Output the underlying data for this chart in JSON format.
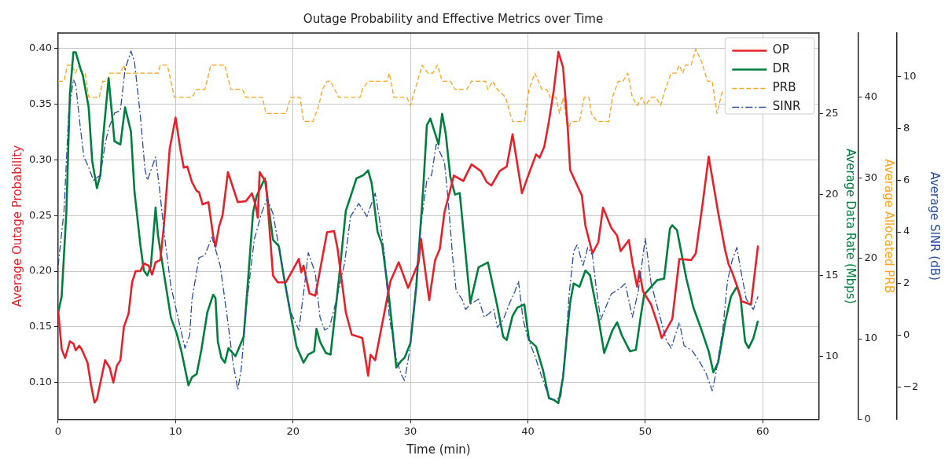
{
  "chart_data": [
    {
      "type": "line",
      "title": "Outage Probability and Effective Metrics over Time",
      "xlabel": "Time (min)",
      "ylabel": "Average Outage Probability",
      "y2label": "Average Data Rate (Mbps)",
      "y3label": "Average Allocated PRB",
      "xlim": [
        0,
        64.8
      ],
      "xticks": [
        0,
        10,
        20,
        30,
        40,
        50,
        60
      ],
      "ylim": [
        0.067,
        0.414
      ],
      "yticks": [
        {
          "value": 0.1,
          "label": "0.10"
        },
        {
          "value": 0.15,
          "label": "0.15"
        },
        {
          "value": 0.2,
          "label": "0.20"
        },
        {
          "value": 0.25,
          "label": "0.25"
        },
        {
          "value": 0.3,
          "label": "0.30"
        },
        {
          "value": 0.35,
          "label": "0.35"
        },
        {
          "value": 0.4,
          "label": "0.40"
        }
      ],
      "y2lim": [
        6.1,
        30
      ],
      "y2ticks": [
        10,
        15,
        20,
        25
      ],
      "y3lim": [
        0,
        48
      ],
      "y3ticks": [
        0,
        10,
        20,
        30,
        40
      ],
      "grid": true,
      "legend": "top right",
      "series": [
        {
          "name": "OP",
          "color": "#e8202a",
          "line_style": "solid",
          "x": [
            0,
            0.3,
            0.6,
            1.0,
            1.3,
            1.5,
            1.8,
            2.0,
            2.5,
            2.8,
            3.1,
            3.3,
            3.6,
            4.0,
            4.4,
            4.7,
            5.0,
            5.3,
            5.6,
            6.0,
            6.3,
            6.6,
            7.0,
            7.3,
            7.7,
            8.0,
            8.3,
            8.7,
            9.0,
            9.5,
            10.0,
            10.4,
            10.7,
            11.0,
            11.4,
            11.8,
            12.0,
            12.3,
            12.8,
            13.2,
            13.4,
            13.7,
            14.0,
            14.46,
            15.3,
            16.0,
            16.5,
            16.8,
            17.0,
            17.16,
            17.7,
            18.3,
            18.7,
            19.4,
            20.5,
            20.7,
            20.9,
            21.4,
            21.9,
            22.9,
            23.5,
            23.8,
            24.5,
            25.0,
            25.9,
            26.4,
            26.6,
            27.0,
            28.3,
            29.0,
            29.8,
            30.7,
            30.9,
            31.6,
            32.1,
            32.5,
            32.9,
            33.7,
            34.5,
            35.2,
            36.0,
            36.5,
            36.9,
            37.6,
            38.2,
            38.7,
            39.5,
            40.0,
            40.7,
            41.0,
            41.4,
            41.8,
            42.2,
            42.6,
            43.0,
            43.4,
            43.6,
            44.2,
            44.6,
            44.9,
            45.5,
            46.0,
            46.4,
            47.1,
            47.6,
            47.9,
            48.6,
            48.9,
            49.3,
            49.5,
            49.8,
            50.5,
            51.1,
            51.4,
            52.3,
            52.9,
            53.9,
            54.3,
            54.9,
            55.4,
            56.2,
            56.8,
            57.1,
            57.4,
            57.9,
            58.2,
            59.0,
            59.6
          ],
          "values": [
            0.165,
            0.13,
            0.122,
            0.137,
            0.135,
            0.129,
            0.133,
            0.13,
            0.118,
            0.098,
            0.082,
            0.085,
            0.1,
            0.12,
            0.113,
            0.1,
            0.115,
            0.12,
            0.15,
            0.162,
            0.19,
            0.2,
            0.2,
            0.207,
            0.205,
            0.197,
            0.208,
            0.21,
            0.24,
            0.31,
            0.338,
            0.31,
            0.293,
            0.294,
            0.28,
            0.272,
            0.271,
            0.26,
            0.262,
            0.232,
            0.222,
            0.24,
            0.25,
            0.289,
            0.262,
            0.263,
            0.27,
            0.26,
            0.248,
            0.289,
            0.28,
            0.196,
            0.19,
            0.19,
            0.211,
            0.199,
            0.205,
            0.18,
            0.178,
            0.235,
            0.236,
            0.22,
            0.163,
            0.143,
            0.14,
            0.106,
            0.125,
            0.12,
            0.191,
            0.208,
            0.185,
            0.208,
            0.229,
            0.174,
            0.21,
            0.22,
            0.253,
            0.286,
            0.281,
            0.296,
            0.29,
            0.28,
            0.277,
            0.29,
            0.294,
            0.323,
            0.27,
            0.285,
            0.305,
            0.302,
            0.312,
            0.335,
            0.362,
            0.397,
            0.383,
            0.328,
            0.291,
            0.277,
            0.268,
            0.241,
            0.216,
            0.226,
            0.257,
            0.239,
            0.232,
            0.218,
            0.228,
            0.208,
            0.186,
            0.2,
            0.182,
            0.17,
            0.151,
            0.14,
            0.157,
            0.211,
            0.21,
            0.216,
            0.262,
            0.303,
            0.253,
            0.219,
            0.206,
            0.199,
            0.184,
            0.173,
            0.17,
            0.223
          ]
        },
        {
          "name": "DR",
          "color": "#007f3f",
          "line_style": "solid",
          "axis": "y2",
          "x": [
            0,
            0.3,
            0.7,
            1.0,
            1.3,
            1.5,
            1.9,
            2.1,
            2.6,
            2.9,
            3.3,
            3.6,
            3.8,
            4.3,
            4.8,
            5.3,
            5.7,
            6.2,
            6.5,
            7.0,
            7.3,
            7.6,
            7.9,
            8.3,
            8.5,
            9.1,
            9.6,
            10.1,
            10.5,
            11.1,
            11.4,
            11.8,
            12.2,
            12.7,
            13.2,
            13.4,
            13.6,
            13.9,
            14.2,
            14.5,
            15.1,
            15.8,
            16.1,
            16.6,
            16.9,
            17.6,
            18.3,
            18.8,
            19.2,
            19.8,
            20.3,
            20.9,
            21.3,
            21.8,
            22.0,
            22.3,
            22.8,
            23.2,
            23.9,
            24.5,
            25.0,
            25.4,
            26.0,
            26.4,
            26.7,
            27.2,
            27.6,
            28.2,
            28.8,
            29.2,
            29.5,
            30.0,
            30.5,
            31.1,
            31.4,
            31.7,
            32.4,
            32.7,
            33.0,
            33.4,
            33.8,
            34.2,
            35.1,
            35.8,
            36.6,
            37.4,
            37.9,
            38.2,
            38.7,
            39.1,
            39.7,
            40.1,
            40.7,
            41.3,
            41.8,
            42.2,
            42.6,
            43.0,
            43.3,
            43.6,
            43.9,
            44.4,
            44.9,
            45.3,
            46.0,
            46.5,
            47.2,
            47.6,
            48.0,
            48.7,
            49.2,
            49.6,
            49.9,
            50.5,
            51.0,
            51.6,
            52.1,
            52.3,
            52.7,
            53.5,
            54.1,
            54.8,
            55.4,
            55.8,
            56.2,
            56.8,
            57.3,
            57.8,
            58.1,
            58.5,
            58.8,
            59.2,
            59.6
          ],
          "values": [
            12.7,
            13.7,
            18.9,
            26.2,
            28.8,
            28.8,
            27.8,
            27.4,
            25.4,
            22.1,
            20.4,
            21.2,
            23.3,
            27.2,
            23.3,
            23.1,
            25.4,
            23.9,
            20.2,
            16.9,
            15.3,
            15.0,
            15.6,
            19.2,
            17.5,
            14.7,
            12.4,
            11.4,
            10.3,
            8.2,
            8.7,
            8.9,
            10.4,
            12.7,
            13.8,
            13.6,
            10.9,
            9.9,
            9.6,
            10.5,
            10.0,
            11.2,
            14.0,
            18.9,
            19.9,
            21.0,
            17.2,
            16.8,
            15.0,
            12.6,
            10.6,
            9.6,
            10.1,
            10.3,
            11.7,
            10.9,
            10.2,
            10.1,
            14.7,
            19.0,
            20.1,
            21.0,
            21.2,
            21.5,
            20.7,
            17.7,
            16.9,
            13.5,
            9.3,
            9.7,
            9.9,
            10.8,
            14.3,
            20.5,
            24.3,
            24.7,
            23.1,
            25.0,
            23.8,
            21.1,
            20.0,
            20.1,
            13.3,
            15.5,
            15.8,
            13.1,
            11.2,
            11.0,
            12.5,
            13.0,
            13.2,
            11.0,
            10.6,
            9.1,
            7.4,
            7.3,
            7.1,
            8.7,
            11.1,
            13.3,
            14.5,
            14.3,
            15.3,
            15.0,
            12.4,
            10.2,
            11.6,
            12.1,
            11.3,
            10.3,
            10.4,
            12.4,
            13.8,
            14.3,
            14.7,
            14.8,
            17.9,
            18.1,
            17.8,
            14.8,
            13.0,
            11.6,
            10.3,
            9.0,
            9.6,
            12.1,
            13.7,
            14.3,
            13.7,
            10.9,
            10.5,
            11.1,
            12.2
          ]
        },
        {
          "name": "PRB",
          "color": "#ffa31a",
          "line_style": "dashed",
          "axis": "y3",
          "x": [
            0,
            0.5,
            0.8,
            1.2,
            1.45,
            1.8,
            2.0,
            2.3,
            2.6,
            3.5,
            3.8,
            4.2,
            4.4,
            5.3,
            5.6,
            5.8,
            8.5,
            8.7,
            9.3,
            9.9,
            11.4,
            11.8,
            12.5,
            13.0,
            14.2,
            14.7,
            15.7,
            16.0,
            17.4,
            17.7,
            19.4,
            19.8,
            20.6,
            20.9,
            21.7,
            22.2,
            22.5,
            22.9,
            23.2,
            23.9,
            25.7,
            25.9,
            26.4,
            28.0,
            28.2,
            28.6,
            29.7,
            30.0,
            30.5,
            31.0,
            31.5,
            31.9,
            32.3,
            32.7,
            33.4,
            33.8,
            34.8,
            35.2,
            36.4,
            36.6,
            37.0,
            37.4,
            38.1,
            38.3,
            38.7,
            39.7,
            40.1,
            40.6,
            41.2,
            41.6,
            41.9,
            42.4,
            42.7,
            43.0,
            43.4,
            43.7,
            44.4,
            44.8,
            45.2,
            45.4,
            45.9,
            46.9,
            47.2,
            47.7,
            48.1,
            48.5,
            48.9,
            49.3,
            49.7,
            50.0,
            50.5,
            50.9,
            51.3,
            51.7,
            52.2,
            52.6,
            52.9,
            53.2,
            53.4,
            53.9,
            54.3,
            54.8,
            55.3,
            55.7,
            56.1,
            56.6
          ],
          "values": [
            42,
            42,
            44,
            44,
            43,
            44,
            43,
            43,
            40,
            40,
            42,
            42,
            43,
            43,
            44,
            43,
            43,
            44,
            44,
            40,
            40,
            41,
            41,
            44,
            44,
            41,
            41,
            40,
            40,
            38,
            38,
            40,
            40,
            37,
            37,
            39,
            41,
            42,
            42,
            40,
            40,
            41,
            42,
            42,
            43,
            40,
            40,
            39,
            41.5,
            44,
            43,
            43,
            44,
            42,
            42,
            41,
            41,
            42,
            42,
            41,
            42,
            41,
            40,
            39,
            37,
            37,
            41,
            43,
            41,
            41,
            40,
            40,
            38,
            40,
            36,
            37,
            37,
            40,
            40,
            38,
            37,
            37,
            40,
            42,
            42,
            43,
            40,
            39,
            40,
            39,
            40,
            40,
            39,
            41,
            43,
            43,
            44,
            43,
            44,
            44,
            46,
            44.4,
            42,
            42,
            38,
            41
          ]
        }
      ]
    },
    {
      "type": "line",
      "ylabel": "Average SINR (dB)",
      "xlim": [
        0,
        64.8
      ],
      "ylim": [
        -3.25,
        11.7
      ],
      "yticks": [
        {
          "value": -2,
          "label": "−2"
        },
        0,
        2,
        4,
        6,
        8,
        10
      ],
      "tick_labels": "y",
      "series": [
        {
          "name": "SINR",
          "color": "#2a4ea0",
          "line_style": "dashdot",
          "x": [
            0,
            0.5,
            0.9,
            1.3,
            1.5,
            1.9,
            2.2,
            2.6,
            3.0,
            3.6,
            4.0,
            4.3,
            4.8,
            5.3,
            5.7,
            6.2,
            6.5,
            7.0,
            7.4,
            7.6,
            8.3,
            8.6,
            9.1,
            9.6,
            10.2,
            10.8,
            11.2,
            11.4,
            12.0,
            12.5,
            13.1,
            13.8,
            14.4,
            14.9,
            15.3,
            15.6,
            16.0,
            16.7,
            17.3,
            17.8,
            18.3,
            19.0,
            19.7,
            20.5,
            21.0,
            21.3,
            21.9,
            22.3,
            22.7,
            23.1,
            23.5,
            23.9,
            24.4,
            24.9,
            25.6,
            26.3,
            27.0,
            27.3,
            27.8,
            28.2,
            28.8,
            29.2,
            29.5,
            29.9,
            30.4,
            30.9,
            31.4,
            31.8,
            32.2,
            32.9,
            33.2,
            33.6,
            33.9,
            34.4,
            34.7,
            35.1,
            35.8,
            36.3,
            37.1,
            37.4,
            37.9,
            38.5,
            38.9,
            39.2,
            39.6,
            40.0,
            40.6,
            41.1,
            41.8,
            42.2,
            42.8,
            43.2,
            43.5,
            43.9,
            44.2,
            44.7,
            45.1,
            45.5,
            45.8,
            46.2,
            47.1,
            47.8,
            48.3,
            48.9,
            49.4,
            50.0,
            50.5,
            51.2,
            51.8,
            52.2,
            52.9,
            53.3,
            54.0,
            54.6,
            55.2,
            55.7,
            56.0,
            56.6,
            57.0,
            57.4,
            57.8,
            58.1,
            58.6,
            58.9,
            59.2,
            59.6
          ],
          "values": [
            2.7,
            4.8,
            8.6,
            9.9,
            9.7,
            8.0,
            6.9,
            6.5,
            6.0,
            6.2,
            7.4,
            8.0,
            8.6,
            8.7,
            10.3,
            11.0,
            10.6,
            8.5,
            6.4,
            6.0,
            6.9,
            5.8,
            3.7,
            1.9,
            0.7,
            -0.5,
            0,
            1.4,
            3.0,
            3.1,
            3.8,
            2.7,
            0.7,
            -1.1,
            -2.1,
            -1.3,
            1.0,
            3.7,
            4.7,
            5.3,
            4.7,
            2.9,
            1.0,
            0.2,
            2.0,
            3.2,
            2.4,
            0.7,
            0.2,
            0.3,
            1.0,
            1.8,
            2.8,
            4.6,
            5.1,
            4.6,
            5.5,
            4.7,
            3.1,
            0.7,
            -0.9,
            -1.5,
            -1.75,
            -0.7,
            1.6,
            4.3,
            6.0,
            6.2,
            7.4,
            6.7,
            5.3,
            3.0,
            1.7,
            1.4,
            1.0,
            1.2,
            1.4,
            0.7,
            1.0,
            0.3,
            0.6,
            1.3,
            1.7,
            2.1,
            0.6,
            -0.1,
            -0.8,
            -1.5,
            -2.4,
            -2.5,
            -2.4,
            -0.6,
            1.5,
            3.25,
            3.5,
            2.7,
            3.4,
            3.1,
            1.9,
            0.6,
            1.6,
            1.8,
            2.0,
            0.7,
            1.7,
            3.75,
            2.0,
            0.8,
            -0.2,
            -0.5,
            0.5,
            -0.4,
            -0.6,
            -1.0,
            -1.5,
            -2.15,
            -1.5,
            0.2,
            2.1,
            2.9,
            3.4,
            2.6,
            1.4,
            1.2,
            1.0,
            1.5
          ]
        }
      ]
    }
  ]
}
